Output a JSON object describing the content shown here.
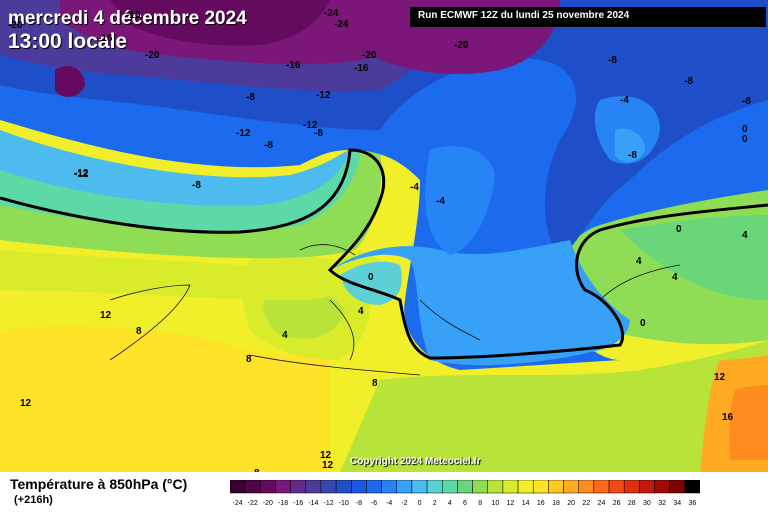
{
  "header": {
    "date_line": "mercredi 4 décembre 2024",
    "time_line": "13:00 locale",
    "run_info": "Run ECMWF 12Z du lundi 25 novembre 2024"
  },
  "footer": {
    "title": "Température à 850hPa (°C)",
    "forecast_hour": "(+216h)",
    "copyright": "Copyright 2024 Meteociel.fr"
  },
  "legend": {
    "ticks": [
      "-24",
      "-22",
      "-20",
      "-18",
      "-16",
      "-14",
      "-12",
      "-10",
      "-8",
      "-6",
      "-4",
      "-2",
      "0",
      "2",
      "4",
      "6",
      "8",
      "10",
      "12",
      "14",
      "16",
      "18",
      "20",
      "22",
      "24",
      "26",
      "28",
      "30",
      "32",
      "34",
      "36"
    ],
    "colors": [
      "#3a0030",
      "#4f0547",
      "#650b5f",
      "#7a1778",
      "#642a8a",
      "#4d3b9c",
      "#3548b2",
      "#1f4fc8",
      "#1d59e0",
      "#1c6bee",
      "#2784f5",
      "#37a0f7",
      "#4cbcee",
      "#5cd0d4",
      "#5cd9a6",
      "#6ad67a",
      "#8fdc55",
      "#b8e43a",
      "#d8ec2c",
      "#f0ef2a",
      "#ffe328",
      "#ffc825",
      "#ffaa22",
      "#ff8c1f",
      "#ff6a1a",
      "#f24a14",
      "#de2f10",
      "#c3180c",
      "#a20a08",
      "#7c0405",
      "#000000"
    ]
  },
  "map_labels": [
    {
      "text": "-16"
    },
    {
      "text": "-24"
    },
    {
      "text": "-24"
    },
    {
      "text": "-20"
    },
    {
      "text": "-16"
    },
    {
      "text": "-20"
    },
    {
      "text": "-20"
    },
    {
      "text": "-16"
    },
    {
      "text": "-20"
    },
    {
      "text": "-16"
    },
    {
      "text": "-8"
    },
    {
      "text": "-8"
    },
    {
      "text": "-12"
    },
    {
      "text": "-12"
    },
    {
      "text": "-12"
    },
    {
      "text": "-12"
    },
    {
      "text": "-8"
    },
    {
      "text": "-8"
    },
    {
      "text": "-8"
    },
    {
      "text": "-8"
    },
    {
      "text": "-4"
    },
    {
      "text": "-12"
    },
    {
      "text": "-8"
    },
    {
      "text": "-4"
    },
    {
      "text": "-4"
    },
    {
      "text": "-8"
    },
    {
      "text": "0"
    },
    {
      "text": "0"
    },
    {
      "text": "0"
    },
    {
      "text": "0"
    },
    {
      "text": "4"
    },
    {
      "text": "4"
    },
    {
      "text": "4"
    },
    {
      "text": "0"
    },
    {
      "text": "12"
    },
    {
      "text": "8"
    },
    {
      "text": "4"
    },
    {
      "text": "8"
    },
    {
      "text": "12"
    },
    {
      "text": "8"
    },
    {
      "text": "12"
    },
    {
      "text": "16"
    },
    {
      "text": "8"
    },
    {
      "text": "12"
    },
    {
      "text": "12"
    },
    {
      "text": "4"
    }
  ]
}
